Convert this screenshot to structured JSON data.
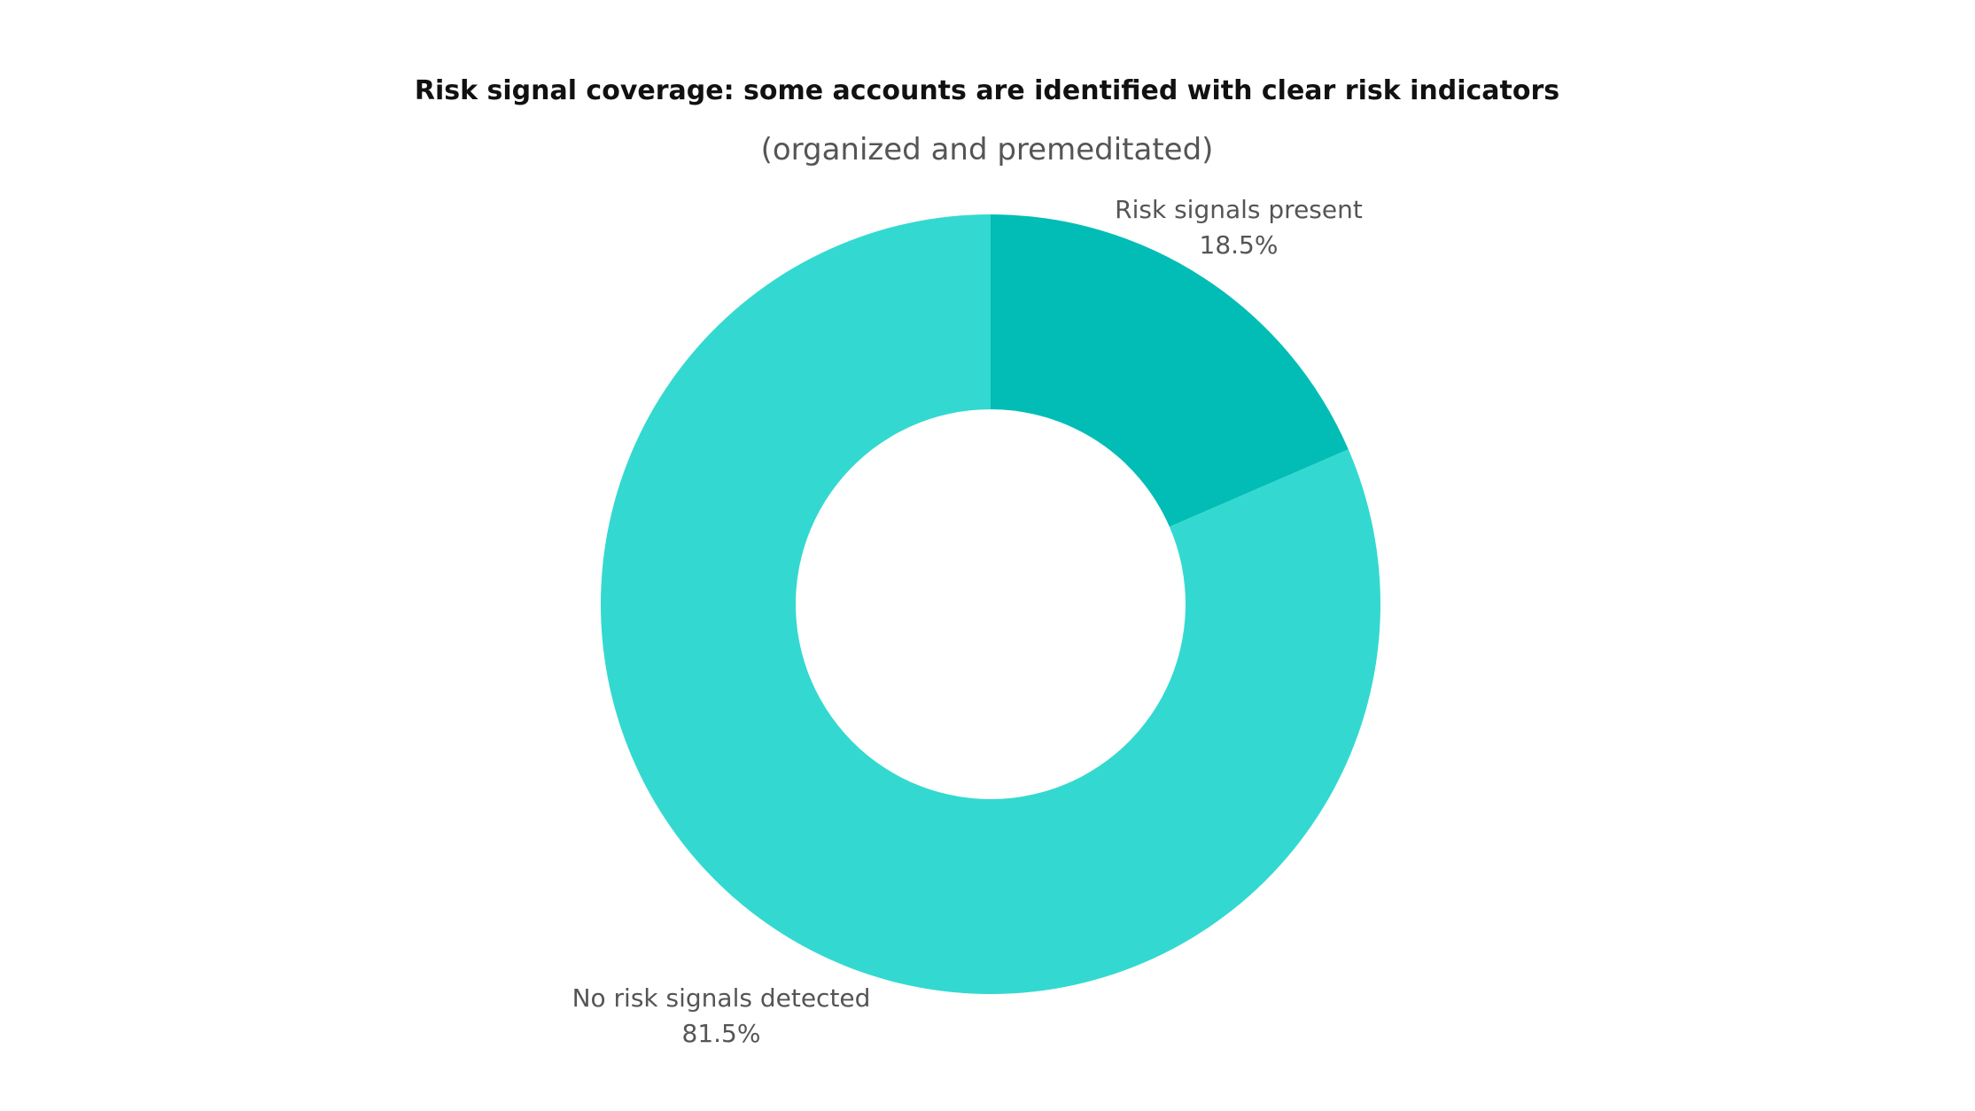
{
  "chart_data": {
    "type": "pie",
    "style": "donut",
    "title": "Risk signal coverage: some accounts are identified with clear risk indicators",
    "subtitle": "(organized and premeditated)",
    "slices": [
      {
        "label": "Risk signals present",
        "value": 18.5,
        "value_label": "18.5%",
        "color": "#02bdb6"
      },
      {
        "label": "No risk signals detected",
        "value": 81.5,
        "value_label": "81.5%",
        "color": "#33d9d0"
      }
    ],
    "start_angle_deg": 0,
    "direction": "clockwise",
    "legend": "none",
    "labels_position": "outside"
  },
  "colors": {
    "background": "#ffffff",
    "title": "#111111",
    "subtitle": "#555555",
    "label": "#555555"
  }
}
